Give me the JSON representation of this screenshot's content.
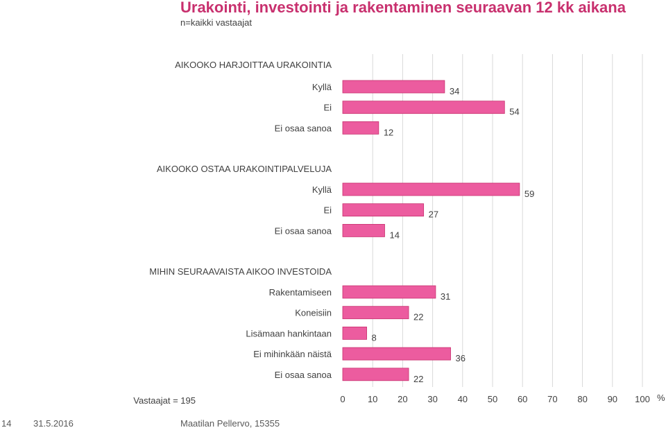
{
  "title": "Urakointi, investointi ja rakentaminen seuraavan 12 kk aikana",
  "subtitle": "n=kaikki vastaajat",
  "colors": {
    "bar": "#ec5c9f",
    "bar_edge": "#c8306e",
    "title": "#c8306e",
    "grid": "#d9d9d9"
  },
  "chart_data": {
    "type": "bar",
    "orientation": "horizontal",
    "xlim": [
      0,
      100
    ],
    "xticks": [
      0,
      10,
      20,
      30,
      40,
      50,
      60,
      70,
      80,
      90,
      100
    ],
    "x_unit": "%",
    "grid": true,
    "groups": [
      {
        "heading": "AIKOOKO HARJOITTAA URAKOINTIA",
        "categories": [
          "Kyllä",
          "Ei",
          "Ei osaa sanoa"
        ],
        "values": [
          34,
          54,
          12
        ]
      },
      {
        "heading": "AIKOOKO OSTAA URAKOINTIPALVELUJA",
        "categories": [
          "Kyllä",
          "Ei",
          "Ei osaa sanoa"
        ],
        "values": [
          59,
          27,
          14
        ]
      },
      {
        "heading": "MIHIN SEURAAVAISTA AIKOO INVESTOIDA",
        "categories": [
          "Rakentamiseen",
          "Koneisiin",
          "Lisämaan hankintaan",
          "Ei mihinkään näistä",
          "Ei osaa sanoa"
        ],
        "values": [
          31,
          22,
          8,
          36,
          22
        ]
      }
    ]
  },
  "respondents": "Vastaajat = 195",
  "footer": {
    "page": "14",
    "date": "31.5.2016",
    "author": "Maatilan Pellervo, 15355"
  }
}
